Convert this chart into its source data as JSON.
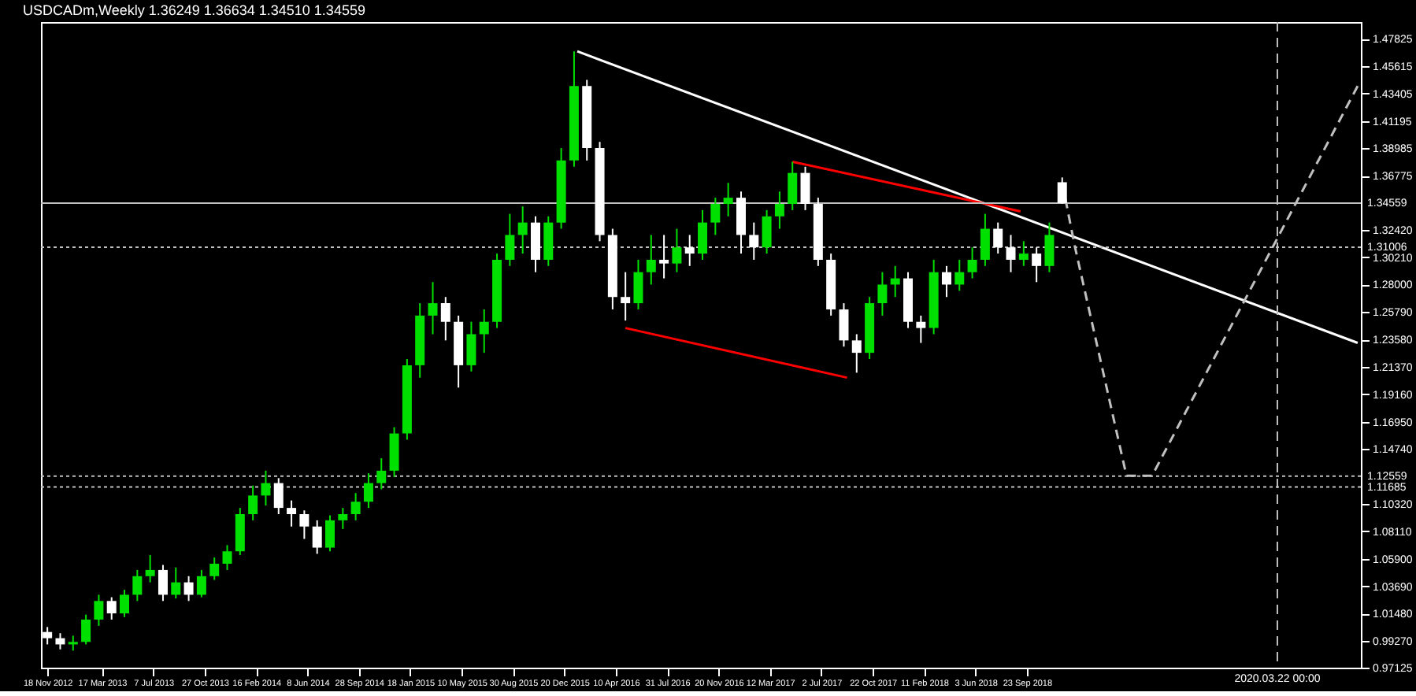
{
  "chart_data": {
    "type": "candlestick",
    "title": "USDCADm,Weekly  1.36249 1.36634 1.34510 1.34559",
    "x": [
      "2012-11-18",
      "2012-12-16",
      "2013-01-13",
      "2013-02-10",
      "2013-03-10",
      "2013-04-07",
      "2013-05-05",
      "2013-06-02",
      "2013-06-30",
      "2013-07-28",
      "2013-08-25",
      "2013-09-22",
      "2013-10-20",
      "2013-11-17",
      "2013-12-15",
      "2014-01-12",
      "2014-02-09",
      "2014-03-09",
      "2014-04-06",
      "2014-05-04",
      "2014-06-01",
      "2014-06-29",
      "2014-07-27",
      "2014-08-24",
      "2014-09-21",
      "2014-10-19",
      "2014-11-16",
      "2014-12-14",
      "2015-01-11",
      "2015-02-08",
      "2015-03-08",
      "2015-04-05",
      "2015-05-03",
      "2015-05-31",
      "2015-06-28",
      "2015-07-26",
      "2015-08-23",
      "2015-09-20",
      "2015-10-18",
      "2015-11-15",
      "2015-12-13",
      "2016-01-10",
      "2016-02-07",
      "2016-03-06",
      "2016-04-03",
      "2016-05-01",
      "2016-05-29",
      "2016-06-26",
      "2016-07-24",
      "2016-08-21",
      "2016-09-18",
      "2016-10-16",
      "2016-11-13",
      "2016-12-11",
      "2017-01-08",
      "2017-02-05",
      "2017-03-05",
      "2017-04-02",
      "2017-04-30",
      "2017-05-28",
      "2017-06-25",
      "2017-07-23",
      "2017-08-20",
      "2017-09-17",
      "2017-10-15",
      "2017-11-12",
      "2017-12-10",
      "2018-01-07",
      "2018-02-04",
      "2018-03-04",
      "2018-04-01",
      "2018-04-29",
      "2018-05-27",
      "2018-06-24",
      "2018-07-22",
      "2018-08-19",
      "2018-09-16",
      "2018-10-14",
      "2018-11-11",
      "2018-12-09"
    ],
    "ohlc": [
      [
        1.0,
        1.004,
        0.99,
        0.995
      ],
      [
        0.995,
        0.999,
        0.986,
        0.99
      ],
      [
        0.99,
        0.997,
        0.985,
        0.992
      ],
      [
        0.992,
        1.014,
        0.99,
        1.01
      ],
      [
        1.01,
        1.03,
        1.005,
        1.025
      ],
      [
        1.025,
        1.028,
        1.01,
        1.015
      ],
      [
        1.015,
        1.034,
        1.012,
        1.03
      ],
      [
        1.03,
        1.05,
        1.025,
        1.045
      ],
      [
        1.045,
        1.062,
        1.04,
        1.05
      ],
      [
        1.05,
        1.054,
        1.025,
        1.03
      ],
      [
        1.03,
        1.052,
        1.027,
        1.04
      ],
      [
        1.04,
        1.045,
        1.025,
        1.03
      ],
      [
        1.03,
        1.05,
        1.028,
        1.045
      ],
      [
        1.045,
        1.06,
        1.042,
        1.055
      ],
      [
        1.055,
        1.07,
        1.05,
        1.065
      ],
      [
        1.065,
        1.1,
        1.062,
        1.095
      ],
      [
        1.095,
        1.118,
        1.09,
        1.11
      ],
      [
        1.11,
        1.13,
        1.102,
        1.12
      ],
      [
        1.12,
        1.124,
        1.095,
        1.1
      ],
      [
        1.1,
        1.106,
        1.085,
        1.095
      ],
      [
        1.095,
        1.098,
        1.075,
        1.085
      ],
      [
        1.085,
        1.09,
        1.063,
        1.068
      ],
      [
        1.068,
        1.094,
        1.065,
        1.09
      ],
      [
        1.09,
        1.1,
        1.083,
        1.095
      ],
      [
        1.095,
        1.112,
        1.09,
        1.105
      ],
      [
        1.105,
        1.128,
        1.1,
        1.12
      ],
      [
        1.12,
        1.14,
        1.115,
        1.13
      ],
      [
        1.13,
        1.165,
        1.125,
        1.16
      ],
      [
        1.16,
        1.22,
        1.155,
        1.215
      ],
      [
        1.215,
        1.265,
        1.205,
        1.255
      ],
      [
        1.255,
        1.282,
        1.24,
        1.265
      ],
      [
        1.265,
        1.27,
        1.235,
        1.25
      ],
      [
        1.25,
        1.255,
        1.197,
        1.215
      ],
      [
        1.215,
        1.25,
        1.21,
        1.24
      ],
      [
        1.24,
        1.26,
        1.225,
        1.25
      ],
      [
        1.25,
        1.305,
        1.245,
        1.3
      ],
      [
        1.3,
        1.337,
        1.295,
        1.32
      ],
      [
        1.32,
        1.343,
        1.305,
        1.33
      ],
      [
        1.33,
        1.335,
        1.29,
        1.3
      ],
      [
        1.3,
        1.335,
        1.295,
        1.33
      ],
      [
        1.33,
        1.39,
        1.325,
        1.38
      ],
      [
        1.38,
        1.468,
        1.375,
        1.44
      ],
      [
        1.44,
        1.445,
        1.38,
        1.39
      ],
      [
        1.39,
        1.395,
        1.315,
        1.32
      ],
      [
        1.32,
        1.325,
        1.26,
        1.27
      ],
      [
        1.27,
        1.29,
        1.251,
        1.265
      ],
      [
        1.265,
        1.3,
        1.26,
        1.29
      ],
      [
        1.29,
        1.32,
        1.28,
        1.3
      ],
      [
        1.3,
        1.32,
        1.285,
        1.297
      ],
      [
        1.297,
        1.325,
        1.29,
        1.31
      ],
      [
        1.31,
        1.32,
        1.295,
        1.305
      ],
      [
        1.305,
        1.34,
        1.3,
        1.33
      ],
      [
        1.33,
        1.35,
        1.32,
        1.345
      ],
      [
        1.345,
        1.362,
        1.335,
        1.35
      ],
      [
        1.35,
        1.355,
        1.305,
        1.32
      ],
      [
        1.32,
        1.33,
        1.3,
        1.31
      ],
      [
        1.31,
        1.34,
        1.305,
        1.335
      ],
      [
        1.335,
        1.355,
        1.325,
        1.345
      ],
      [
        1.345,
        1.379,
        1.34,
        1.37
      ],
      [
        1.37,
        1.375,
        1.34,
        1.345
      ],
      [
        1.345,
        1.35,
        1.295,
        1.3
      ],
      [
        1.3,
        1.305,
        1.255,
        1.26
      ],
      [
        1.26,
        1.265,
        1.23,
        1.235
      ],
      [
        1.235,
        1.24,
        1.209,
        1.225
      ],
      [
        1.225,
        1.27,
        1.22,
        1.265
      ],
      [
        1.265,
        1.29,
        1.255,
        1.28
      ],
      [
        1.28,
        1.295,
        1.27,
        1.285
      ],
      [
        1.285,
        1.29,
        1.245,
        1.25
      ],
      [
        1.25,
        1.255,
        1.233,
        1.245
      ],
      [
        1.245,
        1.3,
        1.24,
        1.29
      ],
      [
        1.29,
        1.295,
        1.27,
        1.28
      ],
      [
        1.28,
        1.3,
        1.275,
        1.29
      ],
      [
        1.29,
        1.31,
        1.285,
        1.3
      ],
      [
        1.3,
        1.337,
        1.295,
        1.325
      ],
      [
        1.325,
        1.33,
        1.305,
        1.31
      ],
      [
        1.31,
        1.32,
        1.29,
        1.3
      ],
      [
        1.3,
        1.315,
        1.295,
        1.305
      ],
      [
        1.305,
        1.31,
        1.282,
        1.295
      ],
      [
        1.295,
        1.33,
        1.29,
        1.32
      ],
      [
        1.36249,
        1.36634,
        1.3451,
        1.34559
      ]
    ],
    "colors": [
      "#ffffff",
      "#ffffff",
      "#00e000",
      "#00e000",
      "#00e000",
      "#ffffff",
      "#00e000",
      "#00e000",
      "#00e000",
      "#ffffff",
      "#00e000",
      "#ffffff",
      "#00e000",
      "#00e000",
      "#00e000",
      "#00e000",
      "#00e000",
      "#00e000",
      "#ffffff",
      "#ffffff",
      "#ffffff",
      "#ffffff",
      "#00e000",
      "#00e000",
      "#00e000",
      "#00e000",
      "#00e000",
      "#00e000",
      "#00e000",
      "#00e000",
      "#00e000",
      "#ffffff",
      "#ffffff",
      "#00e000",
      "#00e000",
      "#00e000",
      "#00e000",
      "#00e000",
      "#ffffff",
      "#00e000",
      "#00e000",
      "#00e000",
      "#ffffff",
      "#ffffff",
      "#ffffff",
      "#ffffff",
      "#00e000",
      "#00e000",
      "#ffffff",
      "#00e000",
      "#ffffff",
      "#00e000",
      "#00e000",
      "#00e000",
      "#ffffff",
      "#ffffff",
      "#00e000",
      "#00e000",
      "#00e000",
      "#ffffff",
      "#ffffff",
      "#ffffff",
      "#ffffff",
      "#ffffff",
      "#00e000",
      "#00e000",
      "#00e000",
      "#ffffff",
      "#ffffff",
      "#00e000",
      "#ffffff",
      "#00e000",
      "#00e000",
      "#00e000",
      "#ffffff",
      "#ffffff",
      "#00e000",
      "#ffffff",
      "#00e000",
      "#ffffff"
    ],
    "series": [
      {
        "type": "line",
        "color": "#ffffff",
        "line_style": "solid",
        "x": [
          "2016-01-17",
          "2020-09-13"
        ],
        "values": [
          1.468,
          1.233
        ]
      },
      {
        "type": "line",
        "color": "#ff0000",
        "line_style": "solid",
        "x": [
          "2017-04-30",
          "2018-09-09"
        ],
        "values": [
          1.379,
          1.339
        ]
      },
      {
        "type": "line",
        "color": "#ff0000",
        "line_style": "solid",
        "x": [
          "2016-05-01",
          "2017-08-27"
        ],
        "values": [
          1.245,
          1.205
        ]
      },
      {
        "type": "line",
        "color": "#c0c0c0",
        "line_style": "dashed",
        "x": [
          "2018-12-16",
          "2019-01-06",
          "2019-04-28",
          "2019-06-23",
          "2020-09-13"
        ],
        "values": [
          1.349,
          1.31,
          1.126,
          1.126,
          1.44
        ]
      }
    ],
    "xlim": [
      "2012-11-04",
      "2020-09-20"
    ],
    "xticks": [
      {
        "value": "2012-11-18",
        "label": "18 Nov 2012"
      },
      {
        "value": "2013-03-17",
        "label": "17 Mar 2013"
      },
      {
        "value": "2013-07-07",
        "label": "7 Jul 2013"
      },
      {
        "value": "2013-10-27",
        "label": "27 Oct 2013"
      },
      {
        "value": "2014-02-16",
        "label": "16 Feb 2014"
      },
      {
        "value": "2014-06-08",
        "label": "8 Jun 2014"
      },
      {
        "value": "2014-09-28",
        "label": "28 Sep 2014"
      },
      {
        "value": "2015-01-18",
        "label": "18 Jan 2015"
      },
      {
        "value": "2015-05-10",
        "label": "10 May 2015"
      },
      {
        "value": "2015-08-30",
        "label": "30 Aug 2015"
      },
      {
        "value": "2015-12-20",
        "label": "20 Dec 2015"
      },
      {
        "value": "2016-04-10",
        "label": "10 Apr 2016"
      },
      {
        "value": "2016-07-31",
        "label": "31 Jul 2016"
      },
      {
        "value": "2016-11-20",
        "label": "20 Nov 2016"
      },
      {
        "value": "2017-03-12",
        "label": "12 Mar 2017"
      },
      {
        "value": "2017-07-02",
        "label": "2 Jul 2017"
      },
      {
        "value": "2017-10-22",
        "label": "22 Oct 2017"
      },
      {
        "value": "2018-02-11",
        "label": "11 Feb 2018"
      },
      {
        "value": "2018-06-03",
        "label": "3 Jun 2018"
      },
      {
        "value": "2018-09-23",
        "label": "23 Sep 2018"
      }
    ],
    "ylim": [
      0.97125,
      1.4916
    ],
    "yticks": [
      {
        "value": 0.97125,
        "label": "0.97125"
      },
      {
        "value": 0.9927,
        "label": "0.99270"
      },
      {
        "value": 1.0148,
        "label": "1.01480"
      },
      {
        "value": 1.0369,
        "label": "1.03690"
      },
      {
        "value": 1.059,
        "label": "1.05900"
      },
      {
        "value": 1.0811,
        "label": "1.08110"
      },
      {
        "value": 1.1032,
        "label": "1.10320"
      },
      {
        "value": 1.1474,
        "label": "1.14740"
      },
      {
        "value": 1.1695,
        "label": "1.16950"
      },
      {
        "value": 1.1916,
        "label": "1.19160"
      },
      {
        "value": 1.2137,
        "label": "1.21370"
      },
      {
        "value": 1.2358,
        "label": "1.23580"
      },
      {
        "value": 1.2579,
        "label": "1.25790"
      },
      {
        "value": 1.28,
        "label": "1.28000"
      },
      {
        "value": 1.3021,
        "label": "1.30210"
      },
      {
        "value": 1.3242,
        "label": "1.32420"
      },
      {
        "value": 1.36775,
        "label": "1.36775"
      },
      {
        "value": 1.38985,
        "label": "1.38985"
      },
      {
        "value": 1.41195,
        "label": "1.41195"
      },
      {
        "value": 1.43405,
        "label": "1.43405"
      },
      {
        "value": 1.45615,
        "label": "1.45615"
      },
      {
        "value": 1.47825,
        "label": "1.47825"
      }
    ],
    "ref_lines": [
      {
        "axis": "y",
        "value": 1.34559,
        "label": "1.34559",
        "color": "#c0c0c0",
        "line_style": "solid"
      },
      {
        "axis": "y",
        "value": 1.31006,
        "label": "1.31006",
        "color": "#c0c0c0",
        "line_style": "dotted"
      },
      {
        "axis": "y",
        "value": 1.12559,
        "label": "1.12559",
        "color": "#c0c0c0",
        "line_style": "dotted"
      },
      {
        "axis": "y",
        "value": 1.11685,
        "label": "1.11685",
        "color": "#c0c0c0",
        "line_style": "dotted"
      },
      {
        "axis": "x",
        "value": "2020-03-22",
        "label": "2020.03.22 00:00",
        "color": "#c0c0c0",
        "line_style": "dashed"
      }
    ],
    "grid": false
  }
}
